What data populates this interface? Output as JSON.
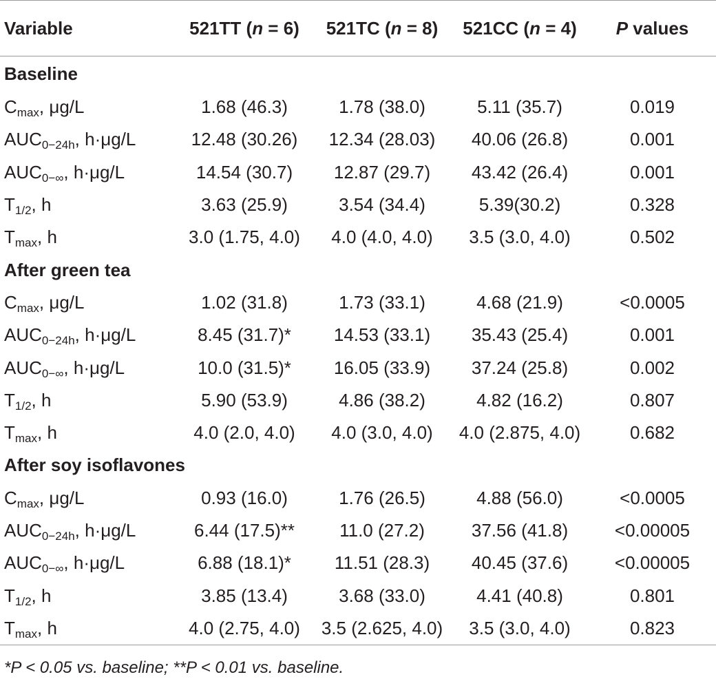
{
  "table": {
    "header": {
      "variable": "Variable",
      "col_tt_prefix": "521TT (",
      "col_tt_n": "n",
      "col_tt_suffix": " = 6)",
      "col_tc_prefix": "521TC (",
      "col_tc_n": "n",
      "col_tc_suffix": " = 8)",
      "col_cc_prefix": "521CC (",
      "col_cc_n": "n",
      "col_cc_suffix": " = 4)",
      "pval_p": "P",
      "pval_suffix": " values"
    },
    "sections": [
      {
        "title": "Baseline",
        "rows": [
          {
            "label_main": "C",
            "label_sub": "max",
            "label_rest": ", μg/L",
            "tt": "1.68 (46.3)",
            "tc": "1.78 (38.0)",
            "cc": "5.11 (35.7)",
            "p": "0.019"
          },
          {
            "label_main": "AUC",
            "label_sub": "0−24h",
            "label_rest": ", h·μg/L",
            "tt": "12.48 (30.26)",
            "tc": "12.34 (28.03)",
            "cc": "40.06 (26.8)",
            "p": "0.001"
          },
          {
            "label_main": "AUC",
            "label_sub": "0−∞",
            "label_rest": ", h·μg/L",
            "tt": "14.54 (30.7)",
            "tc": "12.87 (29.7)",
            "cc": "43.42 (26.4)",
            "p": "0.001"
          },
          {
            "label_main": "T",
            "label_sub": "1/2",
            "label_rest": ", h",
            "tt": "3.63 (25.9)",
            "tc": "3.54 (34.4)",
            "cc": "5.39(30.2)",
            "p": "0.328"
          },
          {
            "label_main": "T",
            "label_sub": "max",
            "label_rest": ", h",
            "tt": "3.0 (1.75, 4.0)",
            "tc": "4.0 (4.0, 4.0)",
            "cc": "3.5 (3.0, 4.0)",
            "p": "0.502"
          }
        ]
      },
      {
        "title": "After green tea",
        "rows": [
          {
            "label_main": "C",
            "label_sub": "max",
            "label_rest": ", μg/L",
            "tt": "1.02 (31.8)",
            "tc": "1.73 (33.1)",
            "cc": "4.68 (21.9)",
            "p": "<0.0005"
          },
          {
            "label_main": "AUC",
            "label_sub": "0−24h",
            "label_rest": ", h·μg/L",
            "tt": "8.45 (31.7)*",
            "tc": "14.53 (33.1)",
            "cc": "35.43 (25.4)",
            "p": "0.001"
          },
          {
            "label_main": "AUC",
            "label_sub": "0−∞",
            "label_rest": ", h·μg/L",
            "tt": "10.0 (31.5)*",
            "tc": "16.05 (33.9)",
            "cc": "37.24 (25.8)",
            "p": "0.002"
          },
          {
            "label_main": "T",
            "label_sub": "1/2",
            "label_rest": ", h",
            "tt": "5.90 (53.9)",
            "tc": "4.86 (38.2)",
            "cc": "4.82 (16.2)",
            "p": "0.807"
          },
          {
            "label_main": "T",
            "label_sub": "max",
            "label_rest": ", h",
            "tt": "4.0 (2.0, 4.0)",
            "tc": "4.0 (3.0, 4.0)",
            "cc": "4.0 (2.875, 4.0)",
            "p": "0.682"
          }
        ]
      },
      {
        "title": "After soy isoflavones",
        "rows": [
          {
            "label_main": "C",
            "label_sub": "max",
            "label_rest": ", μg/L",
            "tt": "0.93 (16.0)",
            "tc": "1.76 (26.5)",
            "cc": "4.88 (56.0)",
            "p": "<0.0005"
          },
          {
            "label_main": "AUC",
            "label_sub": "0−24h",
            "label_rest": ", h·μg/L",
            "tt": "6.44 (17.5)**",
            "tc": "11.0 (27.2)",
            "cc": "37.56 (41.8)",
            "p": "<0.00005"
          },
          {
            "label_main": "AUC",
            "label_sub": "0−∞",
            "label_rest": ", h·μg/L",
            "tt": "6.88 (18.1)*",
            "tc": "11.51 (28.3)",
            "cc": "40.45 (37.6)",
            "p": "<0.00005"
          },
          {
            "label_main": "T",
            "label_sub": "1/2",
            "label_rest": ", h",
            "tt": "3.85 (13.4)",
            "tc": "3.68 (33.0)",
            "cc": "4.41 (40.8)",
            "p": "0.801"
          },
          {
            "label_main": "T",
            "label_sub": "max",
            "label_rest": ", h",
            "tt": "4.0 (2.75, 4.0)",
            "tc": "3.5 (2.625, 4.0)",
            "cc": "3.5 (3.0, 4.0)",
            "p": "0.823"
          }
        ]
      }
    ],
    "footnote": "*P < 0.05 vs. baseline; **P < 0.01 vs. baseline."
  }
}
